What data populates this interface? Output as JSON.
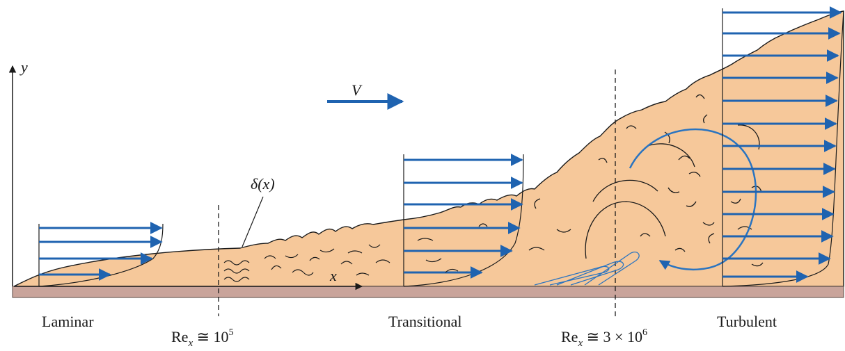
{
  "colors": {
    "fluid": "#f6c89a",
    "plate": "#c9a49b",
    "arrow": "#1f63b0",
    "eddy_blue": "#2a74c0",
    "line": "#1a1a1a"
  },
  "axes": {
    "y_label": "y",
    "x_label": "x",
    "free_stream_label": "V"
  },
  "annotations": {
    "thickness_label": "δ(x)"
  },
  "regions": {
    "laminar": "Laminar",
    "transitional": "Transitional",
    "turbulent": "Turbulent"
  },
  "reynolds": [
    {
      "prefix": "Re",
      "subscript": "x",
      "relation": " ≅ 10",
      "exponent": "5"
    },
    {
      "prefix": "Re",
      "subscript": "x",
      "relation": " ≅ 3 × 10",
      "exponent": "6"
    }
  ]
}
